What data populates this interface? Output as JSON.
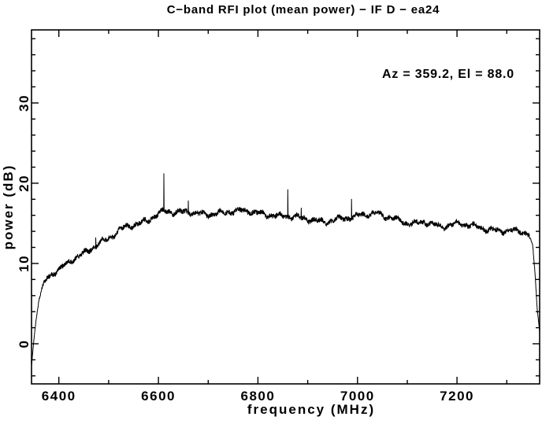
{
  "page": {
    "background": "#ffffff",
    "foreground": "#000000"
  },
  "chart_data": {
    "type": "line",
    "title": "C−band RFI plot (mean power) − IF D − ea24",
    "annotation": "Az  =  359.2, El  =  88.0",
    "xlabel": "frequency (MHz)",
    "ylabel": "power (dB)",
    "xlim": [
      6345,
      7366
    ],
    "ylim": [
      -5,
      39.1
    ],
    "xticks_labeled": [
      6400,
      6600,
      6800,
      7000,
      7200
    ],
    "xticks_minor_step": 100,
    "yticks_labeled": [
      0,
      10,
      20,
      30
    ],
    "yticks_minor_step": 2,
    "grid": false,
    "legend": null,
    "line_color": "#000000",
    "series": [
      {
        "name": "mean power spectrum",
        "envelope_points": [
          [
            6345,
            -2.7
          ],
          [
            6349,
            0.0
          ],
          [
            6354,
            3.0
          ],
          [
            6360,
            5.6
          ],
          [
            6368,
            7.2
          ],
          [
            6376,
            8.2
          ],
          [
            6390,
            8.9
          ],
          [
            6403,
            9.3
          ],
          [
            6419,
            10.0
          ],
          [
            6435,
            10.7
          ],
          [
            6451,
            11.3
          ],
          [
            6467,
            12.0
          ],
          [
            6482,
            12.7
          ],
          [
            6498,
            13.1
          ],
          [
            6514,
            13.7
          ],
          [
            6531,
            14.4
          ],
          [
            6558,
            14.9
          ],
          [
            6577,
            15.4
          ],
          [
            6595,
            16.1
          ],
          [
            6612,
            16.6
          ],
          [
            6630,
            16.3
          ],
          [
            6660,
            16.3
          ],
          [
            6700,
            16.2
          ],
          [
            6740,
            16.4
          ],
          [
            6775,
            16.5
          ],
          [
            6805,
            16.3
          ],
          [
            6835,
            16.0
          ],
          [
            6860,
            15.8
          ],
          [
            6885,
            15.6
          ],
          [
            6915,
            15.4
          ],
          [
            6940,
            15.3
          ],
          [
            6965,
            15.6
          ],
          [
            6990,
            15.6
          ],
          [
            7012,
            16.1
          ],
          [
            7042,
            16.3
          ],
          [
            7073,
            15.6
          ],
          [
            7105,
            14.8
          ],
          [
            7136,
            15.2
          ],
          [
            7168,
            14.7
          ],
          [
            7200,
            14.9
          ],
          [
            7232,
            14.6
          ],
          [
            7263,
            14.3
          ],
          [
            7300,
            14.1
          ],
          [
            7330,
            13.9
          ],
          [
            7344,
            13.6
          ],
          [
            7352,
            12.2
          ],
          [
            7357,
            8.5
          ],
          [
            7361,
            4.5
          ],
          [
            7366,
            1.5
          ]
        ],
        "spikes": [
          [
            6474,
            13.2
          ],
          [
            6611,
            21.2
          ],
          [
            6660,
            17.8
          ],
          [
            6860,
            19.2
          ],
          [
            6887,
            16.9
          ],
          [
            6988,
            18.0
          ]
        ],
        "noise_db": 0.28
      }
    ]
  }
}
